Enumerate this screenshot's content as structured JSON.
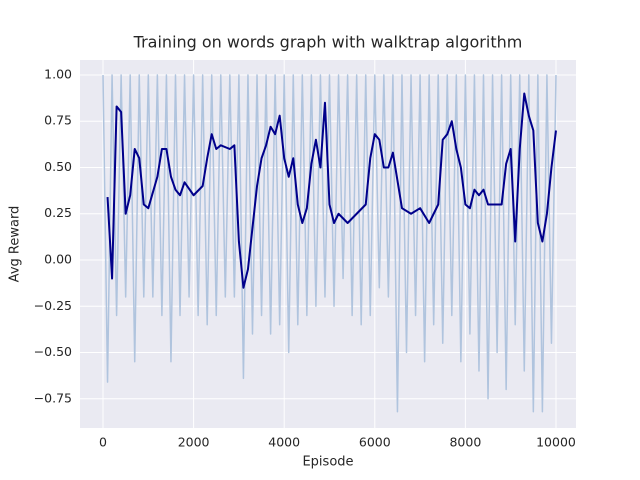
{
  "chart_data": {
    "type": "line",
    "title": "Training on words graph with walktrap algorithm",
    "xlabel": "Episode",
    "ylabel": "Avg Reward",
    "background": "#eaeaf2",
    "grid": true,
    "xlim": [
      -508,
      10442
    ],
    "ylim": [
      -0.908,
      1.081
    ],
    "xticks": [
      0,
      2000,
      4000,
      6000,
      8000,
      10000
    ],
    "yticks": [
      {
        "value": -0.75,
        "label": "−0.75"
      },
      {
        "value": -0.5,
        "label": "−0.50"
      },
      {
        "value": -0.25,
        "label": "−0.25"
      },
      {
        "value": 0,
        "label": "0.00"
      },
      {
        "value": 0.25,
        "label": "0.25"
      },
      {
        "value": 0.5,
        "label": "0.50"
      },
      {
        "value": 0.75,
        "label": "0.75"
      },
      {
        "value": 1,
        "label": "1.00"
      }
    ],
    "series": [
      {
        "color": "#b0c4de",
        "width": 1.5,
        "x": [
          0,
          100,
          200,
          300,
          400,
          500,
          600,
          700,
          800,
          900,
          1000,
          1100,
          1200,
          1300,
          1400,
          1500,
          1600,
          1700,
          1800,
          1900,
          2000,
          2100,
          2200,
          2300,
          2400,
          2500,
          2600,
          2700,
          2800,
          2900,
          3000,
          3100,
          3200,
          3300,
          3400,
          3500,
          3600,
          3700,
          3800,
          3900,
          4000,
          4100,
          4200,
          4300,
          4400,
          4500,
          4600,
          4700,
          4800,
          4900,
          5000,
          5100,
          5200,
          5300,
          5400,
          5500,
          5600,
          5700,
          5800,
          5900,
          6000,
          6100,
          6200,
          6300,
          6400,
          6500,
          6600,
          6700,
          6800,
          6900,
          7000,
          7100,
          7200,
          7300,
          7400,
          7500,
          7600,
          7700,
          7800,
          7900,
          8000,
          8100,
          8200,
          8300,
          8400,
          8500,
          8600,
          8700,
          8800,
          8900,
          9000,
          9100,
          9200,
          9300,
          9400,
          9500,
          9600,
          9700,
          9800,
          9900,
          10000
        ],
        "values": [
          1,
          -0.66,
          1,
          -0.3,
          1,
          -0.2,
          1,
          -0.55,
          1,
          -0.2,
          1,
          -0.2,
          1,
          -0.3,
          1,
          -0.55,
          1,
          -0.3,
          1,
          -0.2,
          1,
          -0.3,
          1,
          -0.35,
          1,
          -0.3,
          1,
          -0.2,
          1,
          -0.2,
          1,
          -0.64,
          1,
          -0.4,
          1,
          -0.3,
          1,
          -0.4,
          1,
          -0.35,
          1,
          -0.5,
          1,
          -0.35,
          1,
          -0.3,
          1,
          -0.25,
          1,
          -0.2,
          1,
          -0.25,
          1,
          -0.1,
          1,
          -0.3,
          1,
          -0.35,
          1,
          -0.3,
          1,
          -0.15,
          1,
          -0.2,
          1,
          -0.82,
          1,
          -0.5,
          1,
          -0.3,
          1,
          -0.55,
          1,
          -0.35,
          1,
          -0.45,
          1,
          -0.3,
          1,
          -0.55,
          1,
          -0.4,
          1,
          -0.6,
          1,
          -0.75,
          1,
          -0.5,
          1,
          -0.7,
          1,
          -0.35,
          1,
          -0.6,
          1,
          -0.82,
          1,
          -0.82,
          1,
          -0.45,
          1
        ]
      },
      {
        "color": "#00008b",
        "width": 2,
        "x": [
          100,
          200,
          300,
          400,
          500,
          600,
          700,
          800,
          900,
          1000,
          1200,
          1300,
          1400,
          1500,
          1600,
          1700,
          1800,
          2000,
          2200,
          2300,
          2400,
          2500,
          2600,
          2800,
          2900,
          3000,
          3100,
          3200,
          3400,
          3500,
          3600,
          3700,
          3800,
          3900,
          4000,
          4100,
          4200,
          4300,
          4400,
          4500,
          4600,
          4700,
          4800,
          4900,
          5000,
          5100,
          5200,
          5400,
          5600,
          5800,
          5900,
          6000,
          6100,
          6200,
          6300,
          6400,
          6600,
          6800,
          7000,
          7200,
          7400,
          7500,
          7600,
          7700,
          7800,
          7900,
          8000,
          8100,
          8200,
          8300,
          8400,
          8500,
          8600,
          8800,
          8900,
          9000,
          9100,
          9200,
          9300,
          9400,
          9500,
          9600,
          9700,
          9800,
          9900,
          10000
        ],
        "values": [
          0.34,
          -0.1,
          0.83,
          0.8,
          0.25,
          0.35,
          0.6,
          0.55,
          0.3,
          0.28,
          0.45,
          0.6,
          0.6,
          0.45,
          0.38,
          0.35,
          0.42,
          0.35,
          0.4,
          0.55,
          0.68,
          0.6,
          0.62,
          0.6,
          0.62,
          0.1,
          -0.15,
          -0.05,
          0.4,
          0.55,
          0.62,
          0.72,
          0.68,
          0.78,
          0.55,
          0.45,
          0.55,
          0.3,
          0.2,
          0.28,
          0.52,
          0.65,
          0.5,
          0.85,
          0.3,
          0.2,
          0.25,
          0.2,
          0.25,
          0.3,
          0.55,
          0.68,
          0.65,
          0.5,
          0.5,
          0.58,
          0.28,
          0.25,
          0.28,
          0.2,
          0.3,
          0.65,
          0.68,
          0.75,
          0.6,
          0.5,
          0.3,
          0.28,
          0.38,
          0.35,
          0.38,
          0.3,
          0.3,
          0.3,
          0.52,
          0.6,
          0.1,
          0.6,
          0.9,
          0.78,
          0.7,
          0.2,
          0.1,
          0.25,
          0.5,
          0.7
        ]
      }
    ]
  }
}
